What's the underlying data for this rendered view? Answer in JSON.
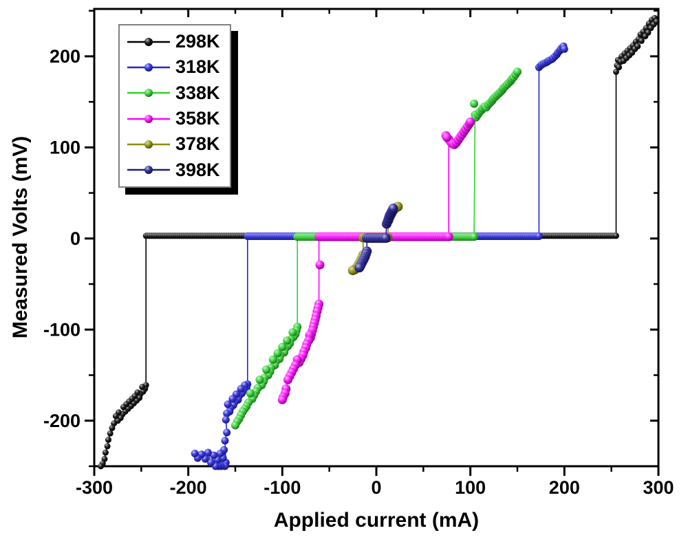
{
  "chart_data": {
    "type": "scatter",
    "title": "",
    "xlabel": "Applied current (mA)",
    "ylabel": "Measured Volts (mV)",
    "xlim": [
      -300,
      300
    ],
    "ylim": [
      -250,
      252
    ],
    "grid": false,
    "legend_position": "top-left",
    "background_color": "#ffffff",
    "axis_color": "#000000",
    "x_major_ticks": [
      -300,
      -200,
      -100,
      0,
      100,
      200,
      300
    ],
    "x_minor_ticks": [
      -250,
      -150,
      -50,
      50,
      150,
      250
    ],
    "y_major_ticks": [
      -200,
      -100,
      0,
      100,
      200
    ],
    "y_minor_ticks": [
      -250,
      -150,
      -50,
      50,
      150,
      250
    ],
    "series": [
      {
        "name": "298K",
        "color": "#000000",
        "marker_radius": 4.5,
        "flat": {
          "x_start": -245,
          "x_end": 255,
          "y": 3,
          "step": 2
        },
        "neg_branch": [
          [
            -245,
            -161
          ],
          [
            -246,
            -165
          ],
          [
            -248,
            -168
          ],
          [
            -249,
            -163
          ],
          [
            -251,
            -171
          ],
          [
            -252,
            -175
          ],
          [
            -254,
            -169
          ],
          [
            -255,
            -178
          ],
          [
            -257,
            -173
          ],
          [
            -258,
            -181
          ],
          [
            -260,
            -176
          ],
          [
            -261,
            -184
          ],
          [
            -263,
            -179
          ],
          [
            -264,
            -187
          ],
          [
            -266,
            -182
          ],
          [
            -267,
            -190
          ],
          [
            -269,
            -185
          ],
          [
            -270,
            -193
          ],
          [
            -272,
            -197
          ],
          [
            -274,
            -191
          ],
          [
            -275,
            -200
          ],
          [
            -277,
            -195
          ],
          [
            -279,
            -203
          ],
          [
            -281,
            -208
          ],
          [
            -283,
            -214
          ],
          [
            -285,
            -221
          ],
          [
            -286,
            -228
          ],
          [
            -288,
            -235
          ],
          [
            -289,
            -242
          ],
          [
            -291,
            -247
          ],
          [
            -293,
            -250
          ]
        ],
        "pos_branch": [
          [
            255,
            183
          ],
          [
            256,
            190
          ],
          [
            257,
            196
          ],
          [
            258,
            188
          ],
          [
            260,
            194
          ],
          [
            261,
            200
          ],
          [
            263,
            195
          ],
          [
            264,
            203
          ],
          [
            266,
            198
          ],
          [
            267,
            206
          ],
          [
            269,
            201
          ],
          [
            270,
            209
          ],
          [
            272,
            204
          ],
          [
            273,
            212
          ],
          [
            275,
            208
          ],
          [
            276,
            216
          ],
          [
            278,
            211
          ],
          [
            279,
            219
          ],
          [
            281,
            224
          ],
          [
            282,
            217
          ],
          [
            284,
            227
          ],
          [
            286,
            222
          ],
          [
            287,
            231
          ],
          [
            289,
            226
          ],
          [
            290,
            236
          ],
          [
            292,
            231
          ],
          [
            293,
            240
          ],
          [
            295,
            235
          ],
          [
            296,
            242
          ],
          [
            298,
            238
          ]
        ],
        "extra_points": []
      },
      {
        "name": "318K",
        "color": "#2222dd",
        "marker_radius": 5.5,
        "flat": {
          "x_start": -137,
          "x_end": 173,
          "y": 2.5,
          "step": 2
        },
        "neg_branch": [
          [
            -137,
            -160
          ],
          [
            -138,
            -164
          ],
          [
            -140,
            -161
          ],
          [
            -141,
            -167
          ],
          [
            -143,
            -170
          ],
          [
            -144,
            -165
          ],
          [
            -146,
            -173
          ],
          [
            -147,
            -177
          ],
          [
            -149,
            -171
          ],
          [
            -150,
            -179
          ],
          [
            -152,
            -183
          ],
          [
            -153,
            -176
          ],
          [
            -155,
            -186
          ],
          [
            -156,
            -190
          ],
          [
            -158,
            -182
          ],
          [
            -159,
            -192
          ],
          [
            -160,
            -199
          ],
          [
            -159,
            -213
          ],
          [
            -161,
            -222
          ],
          [
            -160,
            -246
          ],
          [
            -162,
            -232
          ],
          [
            -161,
            -250
          ],
          [
            -163,
            -241
          ],
          [
            -165,
            -250
          ],
          [
            -166,
            -236
          ],
          [
            -168,
            -250
          ],
          [
            -169,
            -243
          ],
          [
            -171,
            -250
          ],
          [
            -173,
            -238
          ],
          [
            -176,
            -246
          ],
          [
            -179,
            -235
          ],
          [
            -182,
            -242
          ],
          [
            -186,
            -237
          ],
          [
            -190,
            -241
          ],
          [
            -193,
            -236
          ]
        ],
        "pos_branch": [
          [
            173,
            188
          ],
          [
            175,
            190
          ],
          [
            176,
            191
          ],
          [
            178,
            192
          ],
          [
            180,
            193
          ],
          [
            182,
            194
          ],
          [
            183,
            195
          ],
          [
            185,
            196
          ],
          [
            187,
            197
          ],
          [
            188,
            198
          ],
          [
            190,
            200
          ],
          [
            192,
            202
          ],
          [
            193,
            204
          ],
          [
            195,
            206
          ],
          [
            196,
            208
          ],
          [
            198,
            210
          ],
          [
            199,
            211
          ],
          [
            200,
            208
          ]
        ],
        "extra_points": []
      },
      {
        "name": "338K",
        "color": "#2bd42b",
        "marker_radius": 6,
        "flat": {
          "x_start": -84,
          "x_end": 105,
          "y": 2,
          "step": 2
        },
        "neg_branch": [
          [
            -84,
            -97
          ],
          [
            -85,
            -101
          ],
          [
            -86,
            -105
          ],
          [
            -88,
            -108
          ],
          [
            -89,
            -103
          ],
          [
            -91,
            -111
          ],
          [
            -92,
            -115
          ],
          [
            -94,
            -118
          ],
          [
            -95,
            -112
          ],
          [
            -97,
            -121
          ],
          [
            -98,
            -125
          ],
          [
            -100,
            -119
          ],
          [
            -102,
            -128
          ],
          [
            -103,
            -132
          ],
          [
            -105,
            -126
          ],
          [
            -107,
            -135
          ],
          [
            -108,
            -139
          ],
          [
            -110,
            -133
          ],
          [
            -112,
            -142
          ],
          [
            -113,
            -146
          ],
          [
            -115,
            -150
          ],
          [
            -117,
            -144
          ],
          [
            -119,
            -153
          ],
          [
            -120,
            -157
          ],
          [
            -122,
            -161
          ],
          [
            -124,
            -155
          ],
          [
            -126,
            -164
          ],
          [
            -128,
            -168
          ],
          [
            -130,
            -172
          ],
          [
            -132,
            -176
          ],
          [
            -134,
            -170
          ],
          [
            -136,
            -180
          ],
          [
            -138,
            -184
          ],
          [
            -140,
            -187
          ],
          [
            -142,
            -190
          ],
          [
            -144,
            -194
          ],
          [
            -146,
            -198
          ],
          [
            -148,
            -201
          ],
          [
            -150,
            -205
          ]
        ],
        "pos_branch": [
          [
            105,
            136
          ],
          [
            106,
            133
          ],
          [
            108,
            136
          ],
          [
            110,
            139
          ],
          [
            112,
            141
          ],
          [
            113,
            143
          ],
          [
            115,
            145
          ],
          [
            117,
            144
          ],
          [
            119,
            147
          ],
          [
            121,
            149
          ],
          [
            123,
            151
          ],
          [
            124,
            153
          ],
          [
            126,
            155
          ],
          [
            128,
            157
          ],
          [
            130,
            159
          ],
          [
            132,
            161
          ],
          [
            134,
            163
          ],
          [
            135,
            165
          ],
          [
            137,
            167
          ],
          [
            139,
            169
          ],
          [
            141,
            171
          ],
          [
            143,
            173
          ],
          [
            144,
            175
          ],
          [
            146,
            177
          ],
          [
            148,
            180
          ],
          [
            150,
            183
          ]
        ],
        "extra_points": [
          [
            104,
            148
          ]
        ]
      },
      {
        "name": "358K",
        "color": "#ff00ff",
        "marker_radius": 6.5,
        "flat": {
          "x_start": -61,
          "x_end": 77,
          "y": 2,
          "step": 2
        },
        "neg_branch": [
          [
            -61,
            -72
          ],
          [
            -62,
            -76
          ],
          [
            -63,
            -80
          ],
          [
            -64,
            -85
          ],
          [
            -65,
            -89
          ],
          [
            -66,
            -93
          ],
          [
            -67,
            -97
          ],
          [
            -68,
            -101
          ],
          [
            -69,
            -105
          ],
          [
            -70,
            -109
          ],
          [
            -71,
            -106
          ],
          [
            -72,
            -112
          ],
          [
            -74,
            -116
          ],
          [
            -75,
            -120
          ],
          [
            -77,
            -124
          ],
          [
            -78,
            -128
          ],
          [
            -80,
            -132
          ],
          [
            -82,
            -136
          ],
          [
            -84,
            -133
          ],
          [
            -86,
            -139
          ],
          [
            -88,
            -143
          ],
          [
            -90,
            -147
          ],
          [
            -92,
            -151
          ],
          [
            -94,
            -155
          ],
          [
            -96,
            -165
          ],
          [
            -97,
            -170
          ],
          [
            -99,
            -174
          ],
          [
            -100,
            -177
          ]
        ],
        "pos_branch": [
          [
            77,
            109
          ],
          [
            79,
            106
          ],
          [
            81,
            104
          ],
          [
            83,
            103
          ],
          [
            85,
            105
          ],
          [
            87,
            108
          ],
          [
            89,
            111
          ],
          [
            91,
            114
          ],
          [
            93,
            117
          ],
          [
            95,
            120
          ],
          [
            97,
            123
          ],
          [
            99,
            126
          ],
          [
            100,
            128
          ]
        ],
        "extra_points": [
          [
            74,
            113
          ],
          [
            75,
            111
          ],
          [
            -60,
            -29
          ]
        ]
      },
      {
        "name": "378K",
        "color": "#8c8c00",
        "marker_radius": 7,
        "flat": {
          "x_start": -14,
          "x_end": 13,
          "y": 1,
          "step": 2
        },
        "neg_branch": [
          [
            -14,
            -18
          ],
          [
            -15,
            -21
          ],
          [
            -16,
            -23
          ],
          [
            -17,
            -25
          ],
          [
            -18,
            -27
          ],
          [
            -19,
            -29
          ],
          [
            -20,
            -31
          ],
          [
            -21,
            -32
          ],
          [
            -23,
            -34
          ],
          [
            -25,
            -35
          ]
        ],
        "pos_branch": [
          [
            13,
            20
          ],
          [
            14,
            23
          ],
          [
            15,
            25
          ],
          [
            16,
            27
          ],
          [
            17,
            29
          ],
          [
            18,
            31
          ],
          [
            19,
            32
          ],
          [
            20,
            33
          ],
          [
            21,
            34
          ],
          [
            23,
            35
          ]
        ],
        "extra_points": []
      },
      {
        "name": "398K",
        "color": "#1a1a8f",
        "marker_radius": 7,
        "flat": {
          "x_start": -10,
          "x_end": 11,
          "y": 0.5,
          "step": 2
        },
        "neg_branch": [
          [
            -10,
            -14
          ],
          [
            -11,
            -17
          ],
          [
            -12,
            -20
          ],
          [
            -13,
            -22
          ],
          [
            -14,
            -24
          ],
          [
            -15,
            -26
          ],
          [
            -16,
            -28
          ],
          [
            -17,
            -30
          ],
          [
            -18,
            -32
          ]
        ],
        "pos_branch": [
          [
            11,
            16
          ],
          [
            12,
            19
          ],
          [
            13,
            22
          ],
          [
            14,
            25
          ],
          [
            15,
            27
          ],
          [
            16,
            29
          ],
          [
            17,
            31
          ],
          [
            18,
            33
          ]
        ],
        "extra_points": []
      }
    ]
  }
}
